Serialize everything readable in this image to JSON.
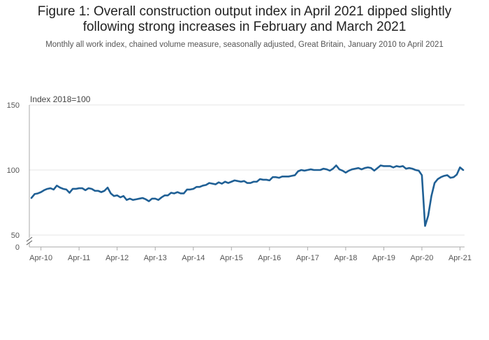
{
  "title_line1": "Figure 1: Overall construction output index in April 2021 dipped slightly",
  "title_line2": "following strong increases in February and March 2021",
  "subtitle": "Monthly all work index, chained volume measure, seasonally adjusted, Great Britain, January 2010 to April 2021",
  "colors": {
    "line": "#206095",
    "grid": "#e6e6e6",
    "axis": "#aaaaaa"
  },
  "chart_data": {
    "type": "line",
    "unit_label": "Index 2018=100",
    "y_ticks": [
      0,
      50,
      100,
      150
    ],
    "y_axis_break": true,
    "ylim": [
      50,
      150
    ],
    "x_tick_labels": [
      "Apr-10",
      "Apr-11",
      "Apr-12",
      "Apr-13",
      "Apr-14",
      "Apr-15",
      "Apr-16",
      "Apr-17",
      "Apr-18",
      "Apr-19",
      "Apr-20",
      "Apr-21"
    ],
    "x_start": "Jan-2010",
    "x_end": "Apr-2021",
    "series": [
      {
        "name": "All work index",
        "values": [
          78.5,
          81.5,
          82,
          83,
          84.5,
          85.5,
          86,
          85,
          88,
          86.5,
          85.5,
          85,
          82.5,
          85.5,
          85.5,
          86,
          86,
          84.5,
          86,
          85.5,
          84,
          84,
          83,
          84,
          86.5,
          82,
          80,
          80.5,
          79,
          80,
          77,
          78,
          77,
          77.5,
          78,
          78.5,
          77.5,
          76,
          78,
          78,
          77,
          79,
          80.5,
          80.5,
          82.5,
          82,
          83,
          82,
          82,
          85,
          85,
          85.5,
          87,
          87,
          88,
          88.5,
          90,
          89.5,
          89,
          90.5,
          89.5,
          91,
          90,
          91,
          92,
          91.5,
          91,
          91.5,
          90,
          90,
          91,
          91,
          93,
          92.5,
          92.5,
          92,
          94.5,
          94.5,
          94,
          95,
          95,
          95,
          95.5,
          96,
          99,
          100,
          99.5,
          100,
          100.5,
          100,
          100,
          100,
          101,
          100.5,
          99.5,
          101,
          103.5,
          100.5,
          99.5,
          98,
          99.5,
          100.5,
          101,
          101.5,
          100.5,
          101.5,
          102,
          101.5,
          99.5,
          101.5,
          103.5,
          103,
          103,
          103,
          102,
          103,
          102.5,
          103,
          101,
          101.5,
          101,
          100,
          99.5,
          96,
          57,
          65,
          80,
          90,
          93,
          94.5,
          95.5,
          96,
          94,
          94.5,
          96.5,
          102,
          100
        ]
      }
    ]
  }
}
